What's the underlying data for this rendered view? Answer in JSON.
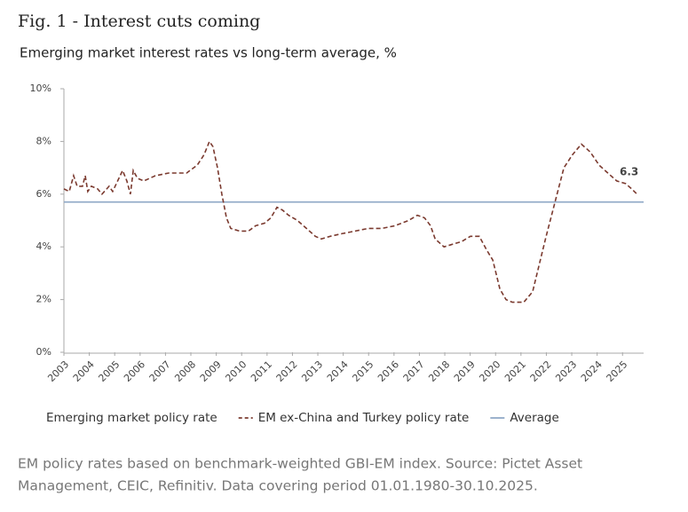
{
  "chart_data": {
    "type": "line",
    "title": "Fig. 1 - Interest cuts coming",
    "subtitle": "Emerging market interest rates vs long-term average, %",
    "annotation": "6.3",
    "footnote": [
      "EM policy rates based on benchmark-weighted GBI-EM index. Source: Pictet Asset",
      "Management, CEIC, Refinitiv. Data covering period 01.01.1980-30.10.2025."
    ],
    "xlim": [
      2003,
      2025.83
    ],
    "xticks": [
      2003,
      2004,
      2005,
      2006,
      2007,
      2008,
      2009,
      2010,
      2011,
      2012,
      2013,
      2014,
      2015,
      2016,
      2017,
      2018,
      2019,
      2020,
      2021,
      2022,
      2023,
      2024,
      2025
    ],
    "ylim": [
      0,
      10
    ],
    "yticks": [
      {
        "value": 0,
        "label": "0%"
      },
      {
        "value": 2,
        "label": "2%"
      },
      {
        "value": 4,
        "label": "4%"
      },
      {
        "value": 6,
        "label": "6%"
      },
      {
        "value": 8,
        "label": "8%"
      },
      {
        "value": 10,
        "label": "10%"
      }
    ],
    "grid": false,
    "x": [
      2003.0,
      2003.21,
      2003.38,
      2003.52,
      2003.73,
      2003.84,
      2003.94,
      2004.08,
      2004.33,
      2004.5,
      2004.78,
      2004.92,
      2005.31,
      2005.48,
      2005.62,
      2005.73,
      2005.9,
      2006.15,
      2006.6,
      2007.13,
      2007.83,
      2008.25,
      2008.52,
      2008.73,
      2008.87,
      2009.05,
      2009.22,
      2009.4,
      2009.57,
      2009.92,
      2010.27,
      2010.55,
      2010.9,
      2011.15,
      2011.39,
      2011.6,
      2011.85,
      2012.2,
      2012.55,
      2012.9,
      2013.14,
      2013.49,
      2013.94,
      2014.47,
      2014.99,
      2015.52,
      2016.04,
      2016.57,
      2016.92,
      2017.2,
      2017.44,
      2017.62,
      2017.97,
      2018.31,
      2018.66,
      2019.01,
      2019.36,
      2019.64,
      2019.89,
      2020.17,
      2020.41,
      2020.66,
      2021.11,
      2021.46,
      2021.71,
      2021.99,
      2022.34,
      2022.69,
      2023.03,
      2023.38,
      2023.73,
      2024.08,
      2024.42,
      2024.77,
      2025.12,
      2025.36,
      2025.57
    ],
    "series": [
      {
        "name": "Emerging market policy rate",
        "values": [
          null,
          null,
          null,
          null,
          null,
          null,
          null,
          null,
          null,
          null,
          null,
          null,
          null,
          null,
          null,
          null,
          null,
          null,
          null,
          null,
          null,
          null,
          null,
          null,
          null,
          null,
          null,
          null,
          null,
          null,
          null,
          null,
          null,
          null,
          null,
          null,
          null,
          null,
          null,
          null,
          null,
          null,
          null,
          null,
          null,
          null,
          null,
          null,
          null,
          null,
          null,
          null,
          null,
          null,
          null,
          null,
          null,
          null,
          null,
          null,
          null,
          null,
          null,
          null,
          null,
          null,
          null,
          null,
          null,
          null,
          null,
          null,
          null,
          null,
          null,
          null,
          null
        ]
      },
      {
        "name": "EM ex-China and Turkey policy rate",
        "color": "#7b3a2f",
        "dash": true,
        "values": [
          6.2,
          6.1,
          6.7,
          6.3,
          6.3,
          6.7,
          6.1,
          6.3,
          6.2,
          6.0,
          6.3,
          6.1,
          6.9,
          6.5,
          6.0,
          6.9,
          6.6,
          6.5,
          6.7,
          6.8,
          6.8,
          7.1,
          7.5,
          8.0,
          7.8,
          7.0,
          6.0,
          5.1,
          4.7,
          4.6,
          4.6,
          4.8,
          4.9,
          5.1,
          5.5,
          5.4,
          5.2,
          5.0,
          4.7,
          4.4,
          4.3,
          4.4,
          4.5,
          4.6,
          4.7,
          4.7,
          4.8,
          5.0,
          5.2,
          5.1,
          4.8,
          4.3,
          4.0,
          4.1,
          4.2,
          4.4,
          4.4,
          3.9,
          3.5,
          2.4,
          2.0,
          1.9,
          1.9,
          2.3,
          3.3,
          4.4,
          5.7,
          7.0,
          7.5,
          7.9,
          7.6,
          7.1,
          6.8,
          6.5,
          6.4,
          6.2,
          6.0
        ]
      }
    ],
    "reference_lines": [
      {
        "name": "Average",
        "value": 5.7,
        "color": "#8ea7c6"
      }
    ]
  }
}
